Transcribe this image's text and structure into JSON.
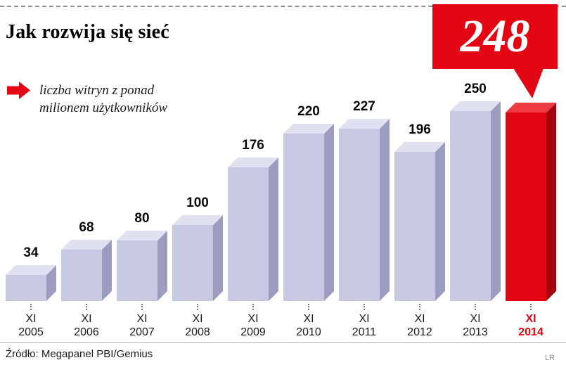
{
  "header": {
    "title": "Jak rozwija się sieć"
  },
  "legend": {
    "line1": "liczba witryn z ponad",
    "line2": "milionem użytkowników"
  },
  "callout": {
    "value": "248"
  },
  "chart_data": {
    "type": "bar",
    "title": "Jak rozwija się sieć",
    "legend_label": "liczba witryn z ponad milionem użytkowników",
    "categories": [
      {
        "top": "XI",
        "bottom": "2005"
      },
      {
        "top": "XI",
        "bottom": "2006"
      },
      {
        "top": "XI",
        "bottom": "2007"
      },
      {
        "top": "XI",
        "bottom": "2008"
      },
      {
        "top": "XI",
        "bottom": "2009"
      },
      {
        "top": "XI",
        "bottom": "2010"
      },
      {
        "top": "XI",
        "bottom": "2011"
      },
      {
        "top": "XI",
        "bottom": "2012"
      },
      {
        "top": "XI",
        "bottom": "2013"
      },
      {
        "top": "XI",
        "bottom": "2014"
      }
    ],
    "values": [
      34,
      68,
      80,
      100,
      176,
      220,
      227,
      196,
      250,
      248
    ],
    "ylim": [
      0,
      250
    ],
    "grid": false,
    "highlight_index": 9,
    "colors": {
      "bar_front": "#c7c8e2",
      "bar_side": "#9b9cc0",
      "bar_top": "#e0e1f0",
      "highlight_front": "#e30613",
      "highlight_side": "#a5040e",
      "highlight_top": "#ee3b41",
      "accent_red": "#e30613",
      "label_text": "#0a0a0a"
    }
  },
  "footer": {
    "source": "Źródło: Megapanel PBI/Gemius",
    "credit": "LR"
  }
}
